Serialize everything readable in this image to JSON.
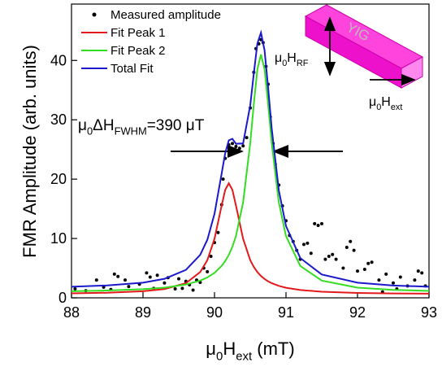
{
  "chart_data": {
    "type": "line",
    "x_label": [
      {
        "text": "μ"
      },
      {
        "text": "0",
        "sub": true
      },
      {
        "text": "H"
      },
      {
        "text": "ext",
        "sub": true
      },
      {
        "text": " (mT)"
      }
    ],
    "y_label": "FMR Amplitude (arb. units)",
    "xlim": [
      88,
      93
    ],
    "xticks": [
      88,
      89,
      90,
      91,
      92,
      93
    ],
    "ylim": [
      0,
      49.5
    ],
    "yticks": [
      0,
      10,
      20,
      30,
      40
    ],
    "legend": "upper left",
    "scatter": {
      "name": "Measured amplitude",
      "color": "#000000",
      "x": [
        88.05,
        88.2,
        88.35,
        88.45,
        88.55,
        88.6,
        88.65,
        88.75,
        88.8,
        88.95,
        89.05,
        89.1,
        89.15,
        89.2,
        89.3,
        89.35,
        89.45,
        89.5,
        89.55,
        89.6,
        89.65,
        89.7,
        89.75,
        89.8,
        89.85,
        89.9,
        89.95,
        90.0,
        90.05,
        90.1,
        90.12,
        90.15,
        90.2,
        90.25,
        90.3,
        90.35,
        90.4,
        90.45,
        90.5,
        90.55,
        90.58,
        90.62,
        90.65,
        90.68,
        90.72,
        90.75,
        90.78,
        90.82,
        90.85,
        90.9,
        90.95,
        91.0,
        91.05,
        91.1,
        91.15,
        91.2,
        91.25,
        91.3,
        91.35,
        91.4,
        91.45,
        91.5,
        91.55,
        91.6,
        91.65,
        91.7,
        91.8,
        91.85,
        91.9,
        91.95,
        92.0,
        92.1,
        92.15,
        92.2,
        92.3,
        92.35,
        92.4,
        92.5,
        92.55,
        92.6,
        92.7,
        92.8,
        92.85,
        92.9,
        92.95
      ],
      "values": [
        1.5,
        1.2,
        3.0,
        1.8,
        1.4,
        4.0,
        3.6,
        3.0,
        1.9,
        2.3,
        4.2,
        3.5,
        1.6,
        3.8,
        2.5,
        3.4,
        1.5,
        3.2,
        1.6,
        2.8,
        2.2,
        1.3,
        3.0,
        2.6,
        5.0,
        4.4,
        7.0,
        9.3,
        11.0,
        15.7,
        20.0,
        23.5,
        25.8,
        26.0,
        25.5,
        25.2,
        25.6,
        27.0,
        32.0,
        38.0,
        42.0,
        42.8,
        43.5,
        43.0,
        39.0,
        36.0,
        30.5,
        26.0,
        22.5,
        19.0,
        15.5,
        13.0,
        10.5,
        9.5,
        8.0,
        6.5,
        9.0,
        9.2,
        7.5,
        12.5,
        12.2,
        12.5,
        6.5,
        7.0,
        7.3,
        6.5,
        5.0,
        8.5,
        9.5,
        8.0,
        4.5,
        4.8,
        5.8,
        6.0,
        3.0,
        1.0,
        4.0,
        2.5,
        1.5,
        3.5,
        2.0,
        3.0,
        4.5,
        4.2,
        2.0
      ]
    },
    "x": [
      88,
      88.5,
      89,
      89.3,
      89.6,
      89.8,
      89.9,
      90.0,
      90.1,
      90.15,
      90.2,
      90.25,
      90.3,
      90.4,
      90.5,
      90.55,
      90.6,
      90.65,
      90.7,
      90.75,
      90.8,
      90.9,
      91.0,
      91.2,
      91.5,
      92,
      92.5,
      93
    ],
    "series": [
      {
        "name": "Fit Peak 1",
        "color": "#e31a1c",
        "values": [
          0.75,
          0.86,
          1.11,
          1.48,
          2.47,
          4.34,
          6.35,
          9.95,
          15.56,
          18.2,
          19.3,
          18.2,
          15.56,
          9.95,
          6.35,
          5.2,
          4.34,
          3.68,
          3.18,
          2.78,
          2.47,
          2.01,
          1.7,
          1.32,
          1.03,
          0.83,
          0.74,
          0.7
        ]
      },
      {
        "name": "Fit Peak 2",
        "color": "#33dd22",
        "values": [
          1.12,
          1.23,
          1.45,
          1.72,
          2.24,
          2.9,
          3.44,
          4.21,
          5.38,
          6.2,
          7.24,
          8.6,
          10.4,
          16.07,
          26.09,
          32.65,
          38.53,
          41.0,
          38.53,
          32.65,
          26.09,
          16.07,
          10.4,
          5.38,
          2.9,
          1.72,
          1.34,
          1.17
        ]
      },
      {
        "name": "Total Fit",
        "color": "#1a1acc",
        "values": [
          1.87,
          2.09,
          2.56,
          3.2,
          4.71,
          7.24,
          9.79,
          14.16,
          20.94,
          24.4,
          26.54,
          26.8,
          25.96,
          26.02,
          32.44,
          37.85,
          42.87,
          44.68,
          41.71,
          35.43,
          28.56,
          18.08,
          12.1,
          6.7,
          3.93,
          2.55,
          2.08,
          1.87
        ]
      }
    ],
    "annotations": {
      "fwhm": [
        {
          "text": "μ"
        },
        {
          "text": "0",
          "sub": true
        },
        {
          "text": "ΔH"
        },
        {
          "text": "FWHM",
          "sub": true
        },
        {
          "text": "=390 μT"
        }
      ],
      "h_rf": [
        {
          "text": "μ"
        },
        {
          "text": "0",
          "sub": true
        },
        {
          "text": "H"
        },
        {
          "text": "RF",
          "sub": true
        }
      ],
      "h_ext": [
        {
          "text": "μ"
        },
        {
          "text": "0",
          "sub": true
        },
        {
          "text": "H"
        },
        {
          "text": "ext",
          "sub": true
        }
      ],
      "sample": "YIG"
    }
  }
}
